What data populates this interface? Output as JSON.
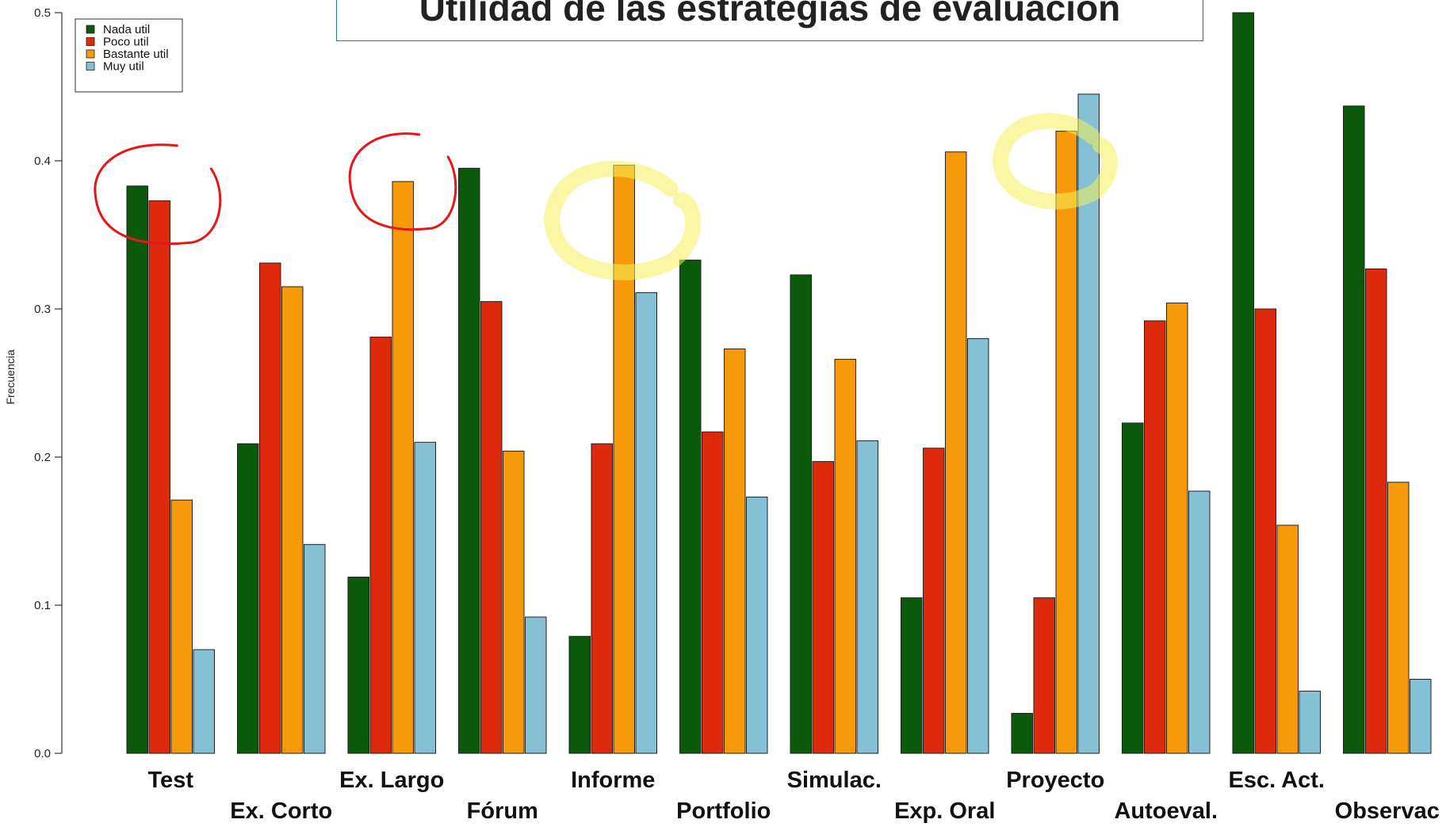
{
  "chart_data": {
    "type": "bar",
    "title": "Utilidad de las estrategias de evaluación",
    "ylabel": "Frecuencia",
    "ylim": [
      0,
      0.5
    ],
    "yticks": [
      "0.0",
      "0.1",
      "0.2",
      "0.3",
      "0.4",
      "0.5"
    ],
    "legend_position": "top-left",
    "categories": [
      "Test",
      "Ex. Corto",
      "Ex. Largo",
      "Fórum",
      "Informe",
      "Portfolio",
      "Simulac.",
      "Exp. Oral",
      "Proyecto",
      "Autoeval.",
      "Esc. Act.",
      "Observac"
    ],
    "series": [
      {
        "name": "Nada util",
        "color": "#0b5a0b",
        "values": [
          0.383,
          0.209,
          0.119,
          0.395,
          0.079,
          0.333,
          0.323,
          0.105,
          0.027,
          0.223,
          0.5,
          0.437
        ]
      },
      {
        "name": "Poco util",
        "color": "#dd2a0c",
        "values": [
          0.373,
          0.331,
          0.281,
          0.305,
          0.209,
          0.217,
          0.197,
          0.206,
          0.105,
          0.292,
          0.3,
          0.327
        ]
      },
      {
        "name": "Bastante util",
        "color": "#f79a0a",
        "values": [
          0.171,
          0.315,
          0.386,
          0.204,
          0.397,
          0.273,
          0.266,
          0.406,
          0.42,
          0.304,
          0.154,
          0.183
        ]
      },
      {
        "name": "Muy util",
        "color": "#85c1d5",
        "values": [
          0.07,
          0.141,
          0.21,
          0.092,
          0.311,
          0.173,
          0.211,
          0.28,
          0.445,
          0.177,
          0.042,
          0.05
        ]
      }
    ],
    "annotations": [
      {
        "kind": "red-circle",
        "category": "Test"
      },
      {
        "kind": "red-circle",
        "category": "Ex. Largo"
      },
      {
        "kind": "yellow-highlight-circle",
        "category": "Informe"
      },
      {
        "kind": "yellow-highlight-circle",
        "category": "Proyecto"
      }
    ]
  }
}
